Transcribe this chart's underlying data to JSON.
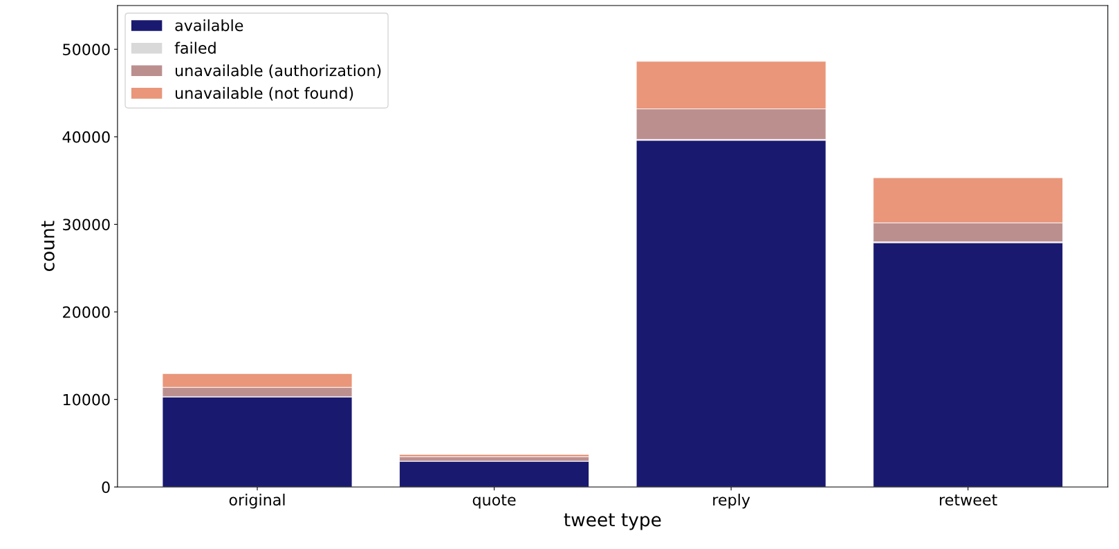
{
  "chart_data": {
    "type": "bar",
    "stacked": true,
    "xlabel": "tweet type",
    "ylabel": "count",
    "categories": [
      "original",
      "quote",
      "reply",
      "retweet"
    ],
    "series": [
      {
        "name": "available",
        "color": "#191970",
        "values": [
          10300,
          2950,
          39600,
          27900
        ]
      },
      {
        "name": "failed",
        "color": "#d9d9d9",
        "values": [
          0,
          0,
          100,
          100
        ]
      },
      {
        "name": "unavailable (authorization)",
        "color": "#bc8f8f",
        "values": [
          1080,
          500,
          3490,
          2170
        ]
      },
      {
        "name": "unavailable (not found)",
        "color": "#e9967a",
        "values": [
          1570,
          270,
          5430,
          5150
        ]
      }
    ],
    "ylim": [
      0,
      55000
    ],
    "yticks": [
      0,
      10000,
      20000,
      30000,
      40000,
      50000
    ],
    "grid": false,
    "legend": "top left"
  }
}
